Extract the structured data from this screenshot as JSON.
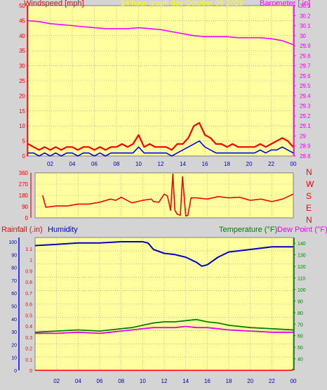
{
  "header": {
    "left_label": "Windspeed [mph]",
    "center_label": "24 hour graph day  October 06 2023",
    "right_label": "Barometer [ in]"
  },
  "panel_bottom": {
    "left_label_rain": "Rainfall (.in)",
    "left_label_hum": "Humidity",
    "right_label_temp": "Temperature (°F)",
    "right_label_dew": "Dew Point (°F)"
  },
  "colors": {
    "plot_bg": "#ffffa0",
    "frame_bg": "#d4d4d4",
    "grid": "#9a9a9a",
    "wind_gust": "#ff0000",
    "wind_avg": "#0000ff",
    "wind_low": "#00a000",
    "barometer": "#ff00ff",
    "direction": "#ff0000",
    "humidity": "#0000c0",
    "temperature": "#008000",
    "dewpoint": "#e000e0",
    "rain": "#ff0000",
    "header_wind": "#ff0000",
    "header_title": "#ffff00",
    "header_baro": "#ff00ff",
    "label_rain": "#ff0000",
    "label_hum": "#0000ff",
    "label_temp": "#008000",
    "label_dew": "#ff00ff"
  },
  "chart_data": [
    {
      "id": "wind_baro",
      "type": "line",
      "x_tick_labels": [
        "02",
        "04",
        "06",
        "08",
        "10",
        "12",
        "14",
        "16",
        "18",
        "20",
        "22",
        "00"
      ],
      "xlim": [
        0,
        24
      ],
      "ylim_left": [
        0,
        50
      ],
      "y_ticks_left": [
        "0",
        "5",
        "10",
        "15",
        "20",
        "25",
        "30",
        "35",
        "40",
        "45",
        "50"
      ],
      "ylim_right": [
        28.8,
        30.3
      ],
      "y_ticks_right": [
        "28.8",
        "28.9",
        "29",
        "29.1",
        "29.2",
        "29.3",
        "29.4",
        "29.5",
        "29.6",
        "29.7",
        "29.8",
        "29.9",
        "30",
        "30.1",
        "30.2",
        "30.3"
      ],
      "series": [
        {
          "name": "Barometer",
          "x": [
            0,
            1,
            2,
            3,
            4,
            5,
            6,
            7,
            8,
            9,
            10,
            11,
            12,
            13,
            14,
            15,
            16,
            17,
            18,
            19,
            20,
            21,
            22,
            23,
            24
          ],
          "values": [
            30.15,
            30.14,
            30.12,
            30.11,
            30.1,
            30.09,
            30.08,
            30.07,
            30.07,
            30.07,
            30.08,
            30.07,
            30.06,
            30.04,
            30.02,
            30.0,
            29.99,
            29.99,
            29.99,
            29.98,
            29.98,
            29.98,
            29.97,
            29.95,
            29.91
          ]
        },
        {
          "name": "Gust",
          "x": [
            0,
            0.5,
            1,
            1.5,
            2,
            2.5,
            3,
            3.5,
            4,
            4.5,
            5,
            5.5,
            6,
            6.5,
            7,
            7.5,
            8,
            8.5,
            9,
            9.5,
            10,
            10.5,
            11,
            11.5,
            12,
            12.5,
            13,
            13.5,
            14,
            14.5,
            15,
            15.5,
            16,
            16.5,
            17,
            17.5,
            18,
            18.5,
            19,
            19.5,
            20,
            20.5,
            21,
            21.5,
            22,
            22.5,
            23,
            23.5,
            24
          ],
          "values": [
            4,
            3,
            2,
            3,
            2,
            3,
            2,
            3,
            3,
            2,
            3,
            3,
            2,
            3,
            2,
            3,
            3,
            4,
            3,
            4,
            7,
            3,
            4,
            3,
            3,
            3,
            2,
            4,
            4,
            6,
            10,
            11,
            7,
            6,
            4,
            4,
            3,
            4,
            3,
            3,
            3,
            3,
            4,
            3,
            4,
            5,
            6,
            5,
            3
          ]
        },
        {
          "name": "Wind",
          "x": [
            0,
            0.5,
            1,
            1.5,
            2,
            2.5,
            3,
            3.5,
            4,
            4.5,
            5,
            5.5,
            6,
            6.5,
            7,
            7.5,
            8,
            8.5,
            9,
            9.5,
            10,
            10.5,
            11,
            11.5,
            12,
            12.5,
            13,
            13.5,
            14,
            14.5,
            15,
            15.5,
            16,
            16.5,
            17,
            17.5,
            18,
            18.5,
            19,
            19.5,
            20,
            20.5,
            21,
            21.5,
            22,
            22.5,
            23,
            23.5,
            24
          ],
          "values": [
            1,
            1,
            0,
            1,
            0,
            1,
            0,
            1,
            1,
            0,
            1,
            1,
            0,
            1,
            0,
            1,
            1,
            1,
            1,
            1,
            3,
            1,
            1,
            1,
            1,
            1,
            0,
            1,
            2,
            3,
            4,
            5,
            3,
            2,
            1,
            1,
            1,
            1,
            1,
            1,
            1,
            1,
            2,
            1,
            2,
            2,
            3,
            2,
            1
          ]
        }
      ]
    },
    {
      "id": "direction",
      "type": "line",
      "x_tick_labels": [],
      "xlim": [
        0,
        24
      ],
      "ylim_left": [
        0,
        360
      ],
      "y_ticks_left": [
        "0",
        "90",
        "180",
        "270",
        "360"
      ],
      "right_labels": [
        "N",
        "W",
        "S",
        "E",
        "N"
      ],
      "series": [
        {
          "name": "Direction",
          "x": [
            0.7,
            1,
            2,
            3,
            4,
            5,
            6,
            7,
            7.5,
            8,
            9,
            10,
            10.8,
            11,
            11.5,
            12,
            12.3,
            12.6,
            12.8,
            13,
            13.2,
            13.5,
            13.7,
            14,
            14.2,
            14.5,
            15,
            16,
            17,
            18,
            19,
            20,
            21,
            22,
            23,
            24
          ],
          "values": [
            180,
            85,
            95,
            95,
            110,
            110,
            125,
            150,
            140,
            165,
            120,
            140,
            150,
            130,
            125,
            190,
            175,
            60,
            350,
            60,
            30,
            20,
            330,
            15,
            20,
            160,
            160,
            150,
            170,
            160,
            165,
            140,
            150,
            130,
            150,
            190
          ]
        }
      ]
    },
    {
      "id": "temp_hum_rain",
      "type": "line",
      "x_tick_labels": [
        "02",
        "04",
        "06",
        "08",
        "10",
        "12",
        "14",
        "16",
        "18",
        "20",
        "22",
        "00"
      ],
      "xlim": [
        0,
        24
      ],
      "ylim_rain": [
        0,
        1.2
      ],
      "y_ticks_rain": [
        "0",
        "0.1",
        "0.2",
        "0.3",
        "0.4",
        "0.5",
        "0.6",
        "0.7",
        "0.8",
        "0.9",
        "1",
        "1.1"
      ],
      "ylim_humidity": [
        0,
        100
      ],
      "y_ticks_humidity": [
        "0",
        "10",
        "20",
        "30",
        "40",
        "50",
        "60",
        "70",
        "80",
        "90",
        "100"
      ],
      "ylim_temp": [
        30,
        145
      ],
      "y_ticks_temp": [
        "40",
        "50",
        "60",
        "70",
        "80",
        "90",
        "100",
        "110",
        "120",
        "130",
        "140"
      ],
      "series": [
        {
          "name": "Humidity",
          "x": [
            0,
            2,
            4,
            6,
            8,
            9,
            10,
            10.5,
            11,
            12,
            13,
            14,
            15,
            15.5,
            16,
            17,
            18,
            20,
            22,
            24
          ],
          "values": [
            97,
            98,
            99,
            99,
            100,
            100,
            100,
            99,
            94,
            91,
            90,
            88,
            84,
            81,
            82,
            88,
            92,
            94,
            96,
            96
          ]
        },
        {
          "name": "Temperature",
          "x": [
            0,
            2,
            4,
            6,
            7,
            8,
            9,
            10,
            11,
            12,
            13,
            14,
            15,
            16,
            17,
            18,
            20,
            22,
            24
          ],
          "values": [
            63,
            64,
            65,
            64,
            65,
            66,
            67,
            69,
            71,
            72,
            72,
            73,
            74,
            72,
            71,
            69,
            67,
            66,
            65
          ]
        },
        {
          "name": "Dew Point",
          "x": [
            0,
            2,
            4,
            6,
            7,
            8,
            9,
            10,
            11,
            12,
            13,
            14,
            15,
            16,
            17,
            18,
            20,
            22,
            24
          ],
          "values": [
            62,
            62,
            63,
            62,
            63,
            64,
            65,
            66,
            67,
            67,
            67,
            68,
            67,
            67,
            66,
            65,
            64,
            63,
            63
          ]
        },
        {
          "name": "Rainfall",
          "x": [
            0,
            23.8,
            24
          ],
          "values": [
            0,
            0,
            0.01
          ]
        }
      ]
    }
  ]
}
